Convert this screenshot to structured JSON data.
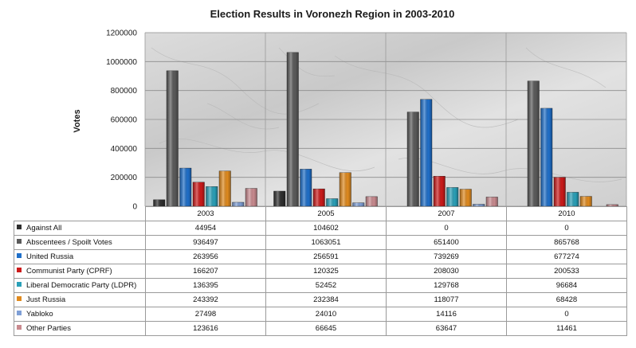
{
  "chart_data": {
    "type": "bar",
    "title": "Election Results in Voronezh Region in 2003-2010",
    "xlabel": "",
    "ylabel": "Votes",
    "ylim": [
      0,
      1200000
    ],
    "yticks": [
      "0",
      "200000",
      "400000",
      "600000",
      "800000",
      "1000000",
      "1200000"
    ],
    "ytick_values": [
      0,
      200000,
      400000,
      600000,
      800000,
      1000000,
      1200000
    ],
    "categories": [
      "2003",
      "2005",
      "2007",
      "2010"
    ],
    "grid": true,
    "legend": "data table below chart",
    "series": [
      {
        "name": "Against All",
        "color": "#2e2e2e",
        "values": [
          44954,
          104602,
          0,
          0
        ]
      },
      {
        "name": "Abscentees / Spoilt Votes",
        "color": "#5a5a5a",
        "values": [
          936497,
          1063051,
          651400,
          865768
        ]
      },
      {
        "name": "United Russia",
        "color": "#1f6fc9",
        "values": [
          263956,
          256591,
          739269,
          677274
        ]
      },
      {
        "name": "Communist Party (CPRF)",
        "color": "#cc1a1a",
        "values": [
          166207,
          120325,
          208030,
          200533
        ]
      },
      {
        "name": "Liberal Democratic Party (LDPR)",
        "color": "#2aa0b8",
        "values": [
          136395,
          52452,
          129768,
          96684
        ]
      },
      {
        "name": "Just Russia",
        "color": "#e08a1e",
        "values": [
          243392,
          232384,
          118077,
          68428
        ]
      },
      {
        "name": "Yabloko",
        "color": "#7f9fd6",
        "values": [
          27498,
          24010,
          14116,
          0
        ]
      },
      {
        "name": "Other Parties",
        "color": "#c98a8f",
        "values": [
          123616,
          66645,
          63647,
          11461
        ]
      }
    ],
    "table_values": [
      [
        "44954",
        "104602",
        "0",
        "0"
      ],
      [
        "936497",
        "1063051",
        "651400",
        "865768"
      ],
      [
        "263956",
        "256591",
        "739269",
        "677274"
      ],
      [
        "166207",
        "120325",
        "208030",
        "200533"
      ],
      [
        "136395",
        "52452",
        "129768",
        "96684"
      ],
      [
        "243392",
        "232384",
        "118077",
        "68428"
      ],
      [
        "27498",
        "24010",
        "14116",
        "0"
      ],
      [
        "123616",
        "66645",
        "63647",
        "11461"
      ]
    ]
  }
}
